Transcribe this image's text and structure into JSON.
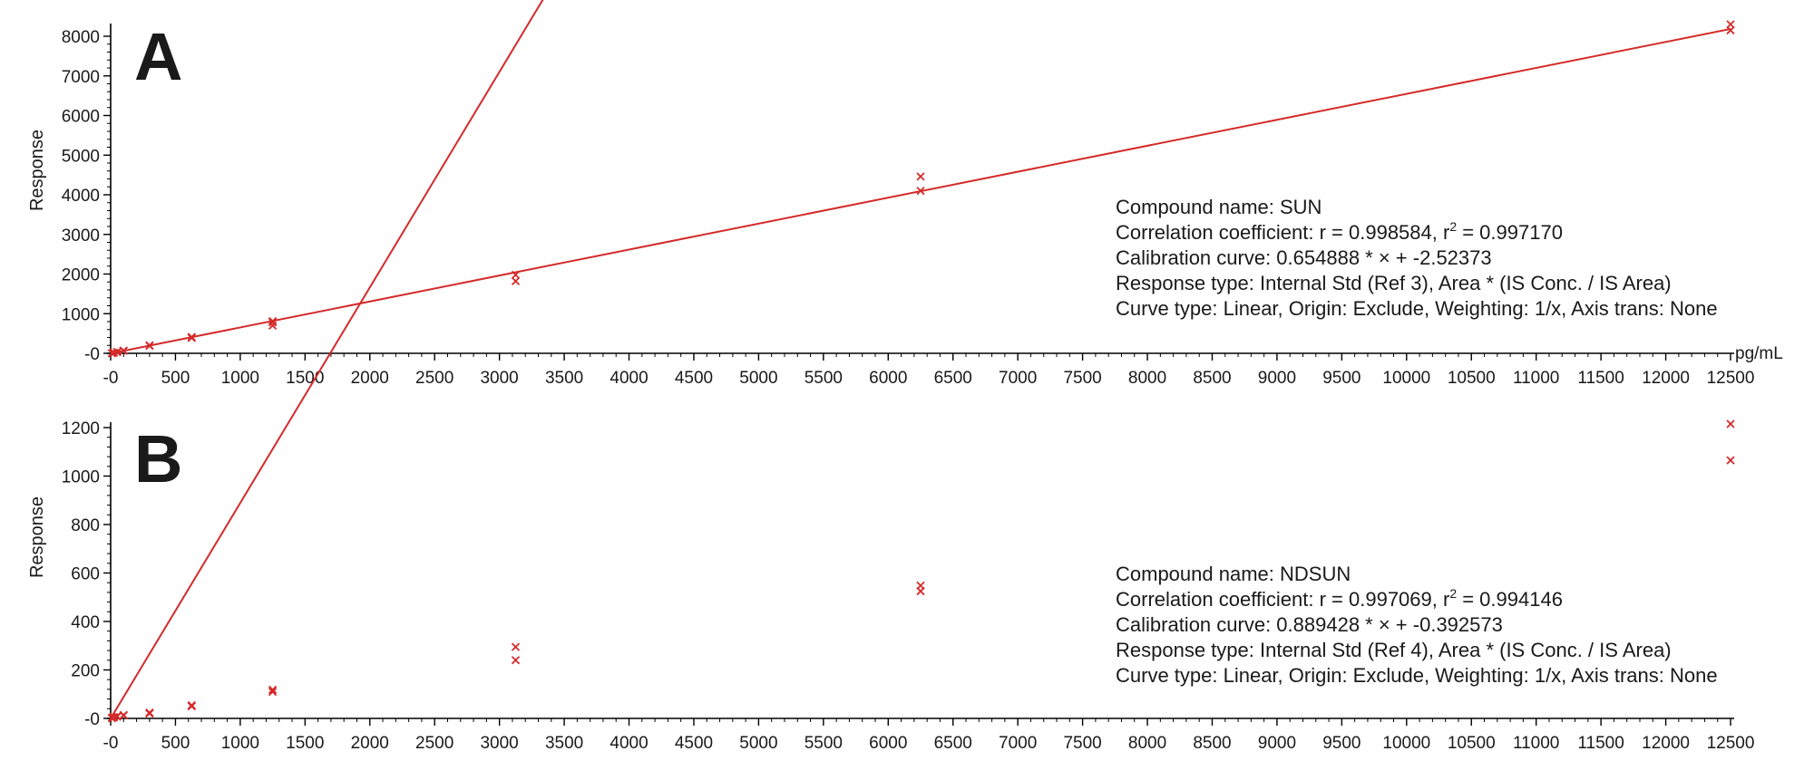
{
  "colors": {
    "series": "#d42a2a",
    "axis": "#000000",
    "text": "#1a1a1a"
  },
  "chart_data": [
    {
      "type": "scatter",
      "panel_label": "A",
      "ylabel": "Response",
      "xlabel": "pg/mL",
      "xlim": [
        -50,
        12500
      ],
      "ylim": [
        -50,
        8200
      ],
      "x_ticks": [
        0,
        500,
        1000,
        1500,
        2000,
        2500,
        3000,
        3500,
        4000,
        4500,
        5000,
        5500,
        6000,
        6500,
        7000,
        7500,
        8000,
        8500,
        9000,
        9500,
        10000,
        10500,
        11000,
        11500,
        12000,
        12500
      ],
      "x_tick_labels": [
        "-0",
        "500",
        "1000",
        "1500",
        "2000",
        "2500",
        "3000",
        "3500",
        "4000",
        "4500",
        "5000",
        "5500",
        "6000",
        "6500",
        "7000",
        "7500",
        "8000",
        "8500",
        "9000",
        "9500",
        "10000",
        "10500",
        "11000",
        "11500",
        "12000",
        "12500"
      ],
      "y_ticks": [
        0,
        1000,
        2000,
        3000,
        4000,
        5000,
        6000,
        7000,
        8000
      ],
      "y_tick_labels": [
        "-0",
        "1000",
        "2000",
        "3000",
        "4000",
        "5000",
        "6000",
        "7000",
        "8000"
      ],
      "series": [
        {
          "x": [
            10,
            10,
            25,
            25,
            50,
            50,
            100,
            100,
            300,
            300,
            625,
            625,
            1250,
            1250,
            1250,
            3125,
            3125,
            6250,
            6250,
            12500,
            12500
          ],
          "y": [
            4,
            6,
            14,
            18,
            30,
            36,
            62,
            68,
            190,
            200,
            390,
            410,
            700,
            780,
            810,
            1820,
            1980,
            4100,
            4460,
            8150,
            8300
          ]
        }
      ],
      "fit_line": {
        "slope": 0.654888,
        "intercept": -2.52373,
        "x_range": [
          0,
          12500
        ]
      },
      "info": {
        "compound": "Compound name: SUN",
        "correlation_prefix": "Correlation coefficient: r = 0.998584, r",
        "correlation_sup": "2",
        "correlation_suffix": " = 0.997170",
        "calibration": "Calibration curve: 0.654888 * × + -2.52373",
        "response_type": "Response type: Internal Std (Ref 3), Area * (IS Conc. / IS Area)",
        "curve_type": "Curve type: Linear, Origin: Exclude, Weighting: 1/x, Axis trans: None"
      }
    },
    {
      "type": "scatter",
      "panel_label": "B",
      "ylabel": "Response",
      "xlabel": "",
      "xlim": [
        -50,
        12500
      ],
      "ylim": [
        -10,
        1220
      ],
      "x_ticks": [
        0,
        500,
        1000,
        1500,
        2000,
        2500,
        3000,
        3500,
        4000,
        4500,
        5000,
        5500,
        6000,
        6500,
        7000,
        7500,
        8000,
        8500,
        9000,
        9500,
        10000,
        10500,
        11000,
        11500,
        12000,
        12500
      ],
      "x_tick_labels": [
        "-0",
        "500",
        "1000",
        "1500",
        "2000",
        "2500",
        "3000",
        "3500",
        "4000",
        "4500",
        "5000",
        "5500",
        "6000",
        "6500",
        "7000",
        "7500",
        "8000",
        "8500",
        "9000",
        "9500",
        "10000",
        "10500",
        "11000",
        "11500",
        "12000",
        "12500"
      ],
      "y_ticks": [
        0,
        200,
        400,
        600,
        800,
        1000,
        1200
      ],
      "y_tick_labels": [
        "-0",
        "200",
        "400",
        "600",
        "800",
        "1000",
        "1200"
      ],
      "series": [
        {
          "x": [
            10,
            10,
            25,
            25,
            50,
            50,
            100,
            100,
            300,
            300,
            625,
            625,
            1250,
            1250,
            3125,
            3125,
            6250,
            6250,
            12500,
            12500
          ],
          "y": [
            1,
            3,
            4,
            6,
            7,
            9,
            12,
            14,
            20,
            24,
            50,
            54,
            110,
            118,
            240,
            295,
            525,
            548,
            1065,
            1215
          ]
        }
      ],
      "fit_line": {
        "slope": 0.889428,
        "intercept": -0.392573,
        "x_range": [
          0,
          12500
        ]
      },
      "info": {
        "compound": "Compound name: NDSUN",
        "correlation_prefix": "Correlation coefficient: r = 0.997069, r",
        "correlation_sup": "2",
        "correlation_suffix": " = 0.994146",
        "calibration": "Calibration curve: 0.889428 * × + -0.392573",
        "response_type": "Response type: Internal Std (Ref 4), Area * (IS Conc. / IS Area)",
        "curve_type": "Curve type: Linear, Origin: Exclude, Weighting: 1/x, Axis trans: None"
      }
    }
  ]
}
